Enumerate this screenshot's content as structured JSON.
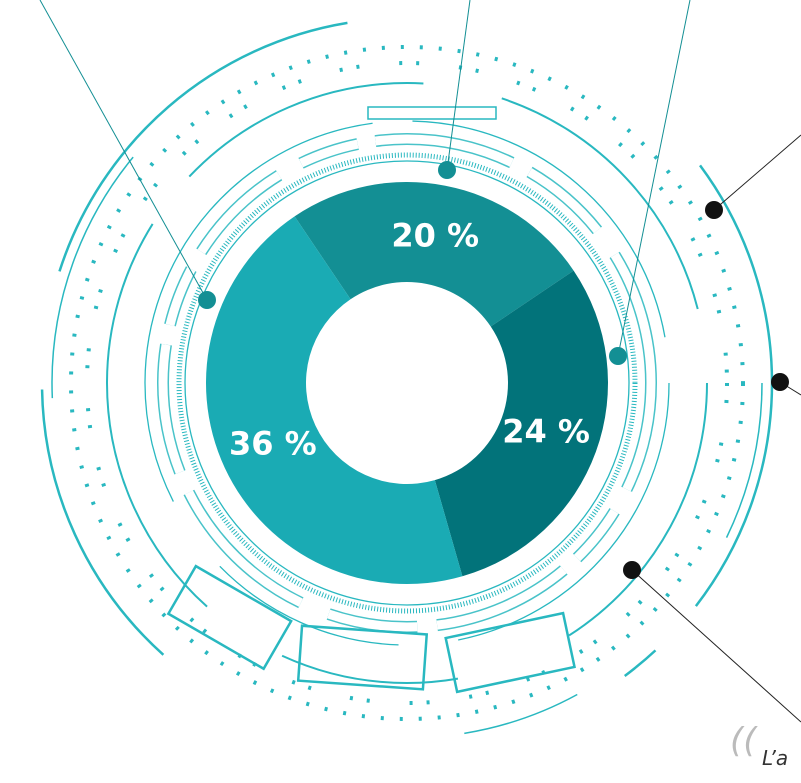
{
  "chart_data": {
    "type": "pie",
    "categories": [
      null,
      null,
      null
    ],
    "values": [
      20,
      24,
      36
    ],
    "value_labels": [
      "20 %",
      "24 %",
      "36 %"
    ],
    "colors": [
      "#138f94",
      "#02737a",
      "#1aabb4"
    ],
    "annotation": "L’a"
  }
}
